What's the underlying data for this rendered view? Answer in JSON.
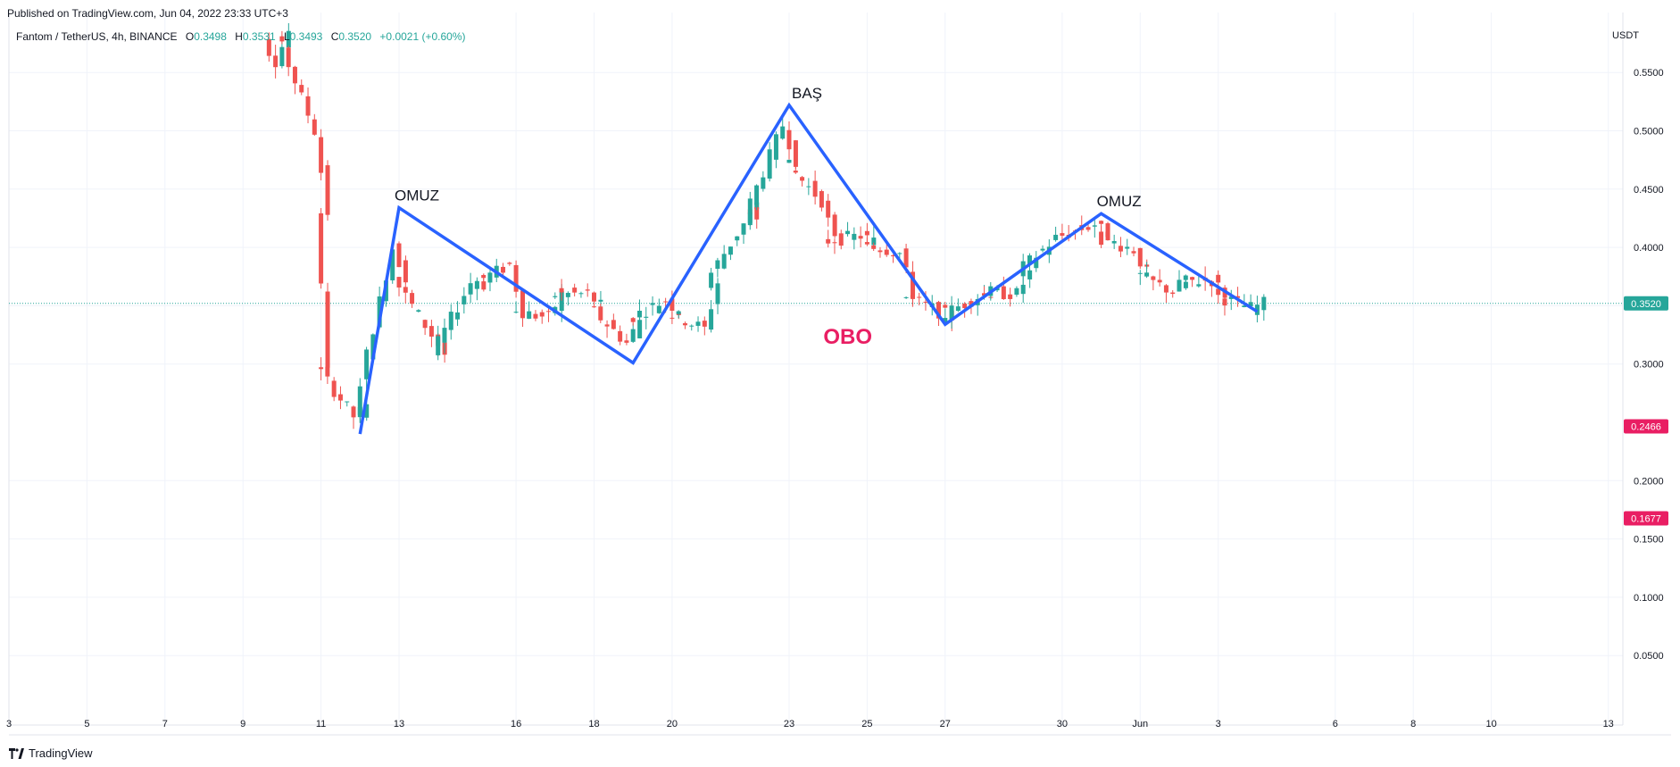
{
  "header": {
    "published": "Published on TradingView.com, Jun 04, 2022 23:33 UTC+3",
    "symbol_desc": "Fantom / TetherUS, 4h, BINANCE",
    "open_label": "O",
    "open_value": "0.3498",
    "high_label": "H",
    "high_value": "0.3531",
    "low_label": "L",
    "low_value": "0.3493",
    "close_label": "C",
    "close_value": "0.3520",
    "change": "+0.0021 (+0.60%)"
  },
  "footer": {
    "brand": "TradingView"
  },
  "colors": {
    "up": "#26a69a",
    "down": "#ef5350",
    "pattern_line": "#2962ff",
    "obo_text": "#e91e63",
    "price_line": "#26a69a",
    "marker_red": "#e91e63"
  },
  "chart_data": {
    "type": "candlestick",
    "unit": "USDT",
    "ylim": [
      0.0,
      0.58
    ],
    "y_ticks": [
      "0.0500",
      "0.1000",
      "0.1500",
      "0.2000",
      "0.3000",
      "0.3500",
      "0.4000",
      "0.4500",
      "0.5000",
      "0.5500"
    ],
    "x_ticks": [
      "3",
      "5",
      "7",
      "9",
      "11",
      "13",
      "16",
      "18",
      "20",
      "23",
      "25",
      "27",
      "30",
      "Jun",
      "3",
      "6",
      "8",
      "10",
      "13"
    ],
    "price_markers": [
      {
        "value": "0.3520",
        "price": 0.352,
        "kind": "last"
      },
      {
        "value": "0.2466",
        "price": 0.2466,
        "kind": "level"
      },
      {
        "value": "0.1677",
        "price": 0.1677,
        "kind": "level"
      }
    ],
    "pattern_points": [
      {
        "date": "May 12",
        "price": 0.24
      },
      {
        "date": "May 13",
        "price": 0.434
      },
      {
        "date": "May 19",
        "price": 0.301
      },
      {
        "date": "May 23",
        "price": 0.522
      },
      {
        "date": "May 27",
        "price": 0.334
      },
      {
        "date": "May 31",
        "price": 0.429
      },
      {
        "date": "Jun 4",
        "price": 0.345
      }
    ],
    "annotations": [
      {
        "text": "OMUZ",
        "date": "May 13",
        "price": 0.434
      },
      {
        "text": "BAŞ",
        "date": "May 23",
        "price": 0.522
      },
      {
        "text": "OMUZ",
        "date": "May 31",
        "price": 0.429
      },
      {
        "text": "OBO",
        "date": "May 24",
        "price": 0.325
      }
    ],
    "candle_points": [
      {
        "date": "May 9",
        "price": 0.61
      },
      {
        "date": "May 10",
        "price": 0.56
      },
      {
        "date": "May 10",
        "price": 0.585
      },
      {
        "date": "May 11",
        "price": 0.5
      },
      {
        "date": "May 11",
        "price": 0.43
      },
      {
        "date": "May 11",
        "price": 0.3
      },
      {
        "date": "May 12",
        "price": 0.255
      },
      {
        "date": "May 12",
        "price": 0.262
      },
      {
        "date": "May 13",
        "price": 0.4
      },
      {
        "date": "May 13",
        "price": 0.375
      },
      {
        "date": "May 14",
        "price": 0.325
      },
      {
        "date": "May 14",
        "price": 0.308
      },
      {
        "date": "May 15",
        "price": 0.37
      },
      {
        "date": "May 15",
        "price": 0.368
      },
      {
        "date": "May 16",
        "price": 0.385
      },
      {
        "date": "May 16",
        "price": 0.345
      },
      {
        "date": "May 17",
        "price": 0.34
      },
      {
        "date": "May 17",
        "price": 0.36
      },
      {
        "date": "May 18",
        "price": 0.36
      },
      {
        "date": "May 18",
        "price": 0.35
      },
      {
        "date": "May 19",
        "price": 0.318
      },
      {
        "date": "May 19",
        "price": 0.338
      },
      {
        "date": "May 20",
        "price": 0.355
      },
      {
        "date": "May 20",
        "price": 0.345
      },
      {
        "date": "May 21",
        "price": 0.33
      },
      {
        "date": "May 21",
        "price": 0.37
      },
      {
        "date": "May 22",
        "price": 0.42
      },
      {
        "date": "May 22",
        "price": 0.435
      },
      {
        "date": "May 22",
        "price": 0.425
      },
      {
        "date": "May 23",
        "price": 0.505
      },
      {
        "date": "May 23",
        "price": 0.475
      },
      {
        "date": "May 24",
        "price": 0.44
      },
      {
        "date": "May 24",
        "price": 0.405
      },
      {
        "date": "May 25",
        "price": 0.41
      },
      {
        "date": "May 25",
        "price": 0.405
      },
      {
        "date": "May 26",
        "price": 0.395
      },
      {
        "date": "May 26",
        "price": 0.36
      },
      {
        "date": "May 27",
        "price": 0.345
      },
      {
        "date": "May 27",
        "price": 0.34
      },
      {
        "date": "May 28",
        "price": 0.358
      },
      {
        "date": "May 28",
        "price": 0.362
      },
      {
        "date": "May 29",
        "price": 0.36
      },
      {
        "date": "May 29",
        "price": 0.378
      },
      {
        "date": "May 30",
        "price": 0.408
      },
      {
        "date": "May 31",
        "price": 0.42
      },
      {
        "date": "May 31",
        "price": 0.41
      },
      {
        "date": "Jun 1",
        "price": 0.398
      },
      {
        "date": "Jun 1",
        "price": 0.378
      },
      {
        "date": "Jun 2",
        "price": 0.362
      },
      {
        "date": "Jun 2",
        "price": 0.37
      },
      {
        "date": "Jun 3",
        "price": 0.372
      },
      {
        "date": "Jun 3",
        "price": 0.36
      },
      {
        "date": "Jun 4",
        "price": 0.348
      },
      {
        "date": "Jun 4",
        "price": 0.352
      }
    ]
  }
}
